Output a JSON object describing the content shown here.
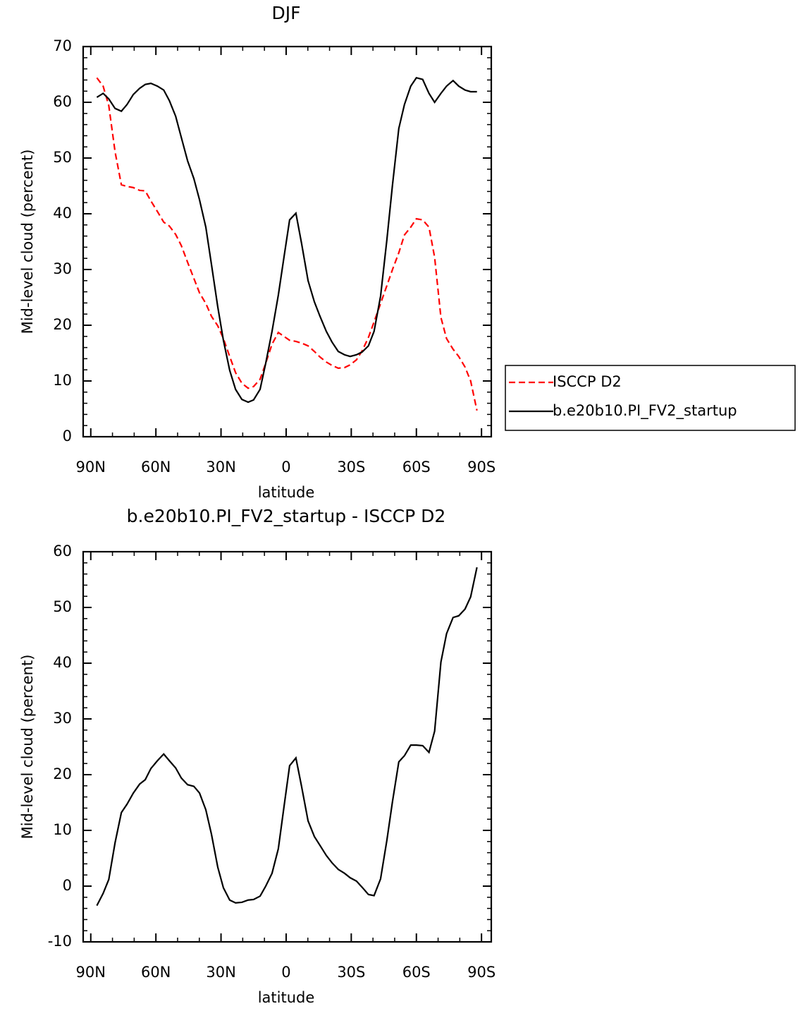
{
  "chart_data": [
    {
      "type": "line",
      "title": "DJF",
      "xlabel": "latitude",
      "ylabel": "Mid-level cloud (percent)",
      "x": [
        87.2,
        84.3,
        81.7,
        78.8,
        75.9,
        73.3,
        70.4,
        67.5,
        64.9,
        62.3,
        59.3,
        56.4,
        53.8,
        50.9,
        48.3,
        45.4,
        42.5,
        39.9,
        37.0,
        34.4,
        31.5,
        28.9,
        26.0,
        23.3,
        20.4,
        17.5,
        15.0,
        12.0,
        9.4,
        6.5,
        3.6,
        1.0,
        -1.6,
        -4.5,
        -7.1,
        -10.1,
        -13.0,
        -15.6,
        -18.5,
        -21.1,
        -24.0,
        -26.9,
        -29.5,
        -32.4,
        -35.0,
        -37.9,
        -40.5,
        -43.5,
        -46.4,
        -49.0,
        -51.9,
        -54.5,
        -57.4,
        -60.0,
        -62.9,
        -65.8,
        -68.4,
        -71.3,
        -73.9,
        -76.9,
        -79.5,
        -82.4,
        -85.0,
        -87.9
      ],
      "series": [
        {
          "name": "ISCCP D2",
          "color": "#ff0000",
          "line_style": "dashed",
          "values": [
            64.4,
            62.9,
            59.4,
            51.1,
            45.2,
            44.9,
            44.7,
            44.2,
            44.1,
            42.3,
            40.4,
            38.5,
            37.8,
            36.3,
            34.3,
            31.3,
            28.4,
            25.8,
            23.9,
            21.6,
            19.9,
            17.6,
            14.4,
            11.5,
            9.6,
            8.7,
            9.0,
            10.3,
            13.2,
            16.6,
            18.7,
            18.0,
            17.3,
            17.1,
            16.8,
            16.3,
            15.3,
            14.3,
            13.4,
            12.8,
            12.3,
            12.4,
            12.9,
            13.8,
            15.4,
            17.8,
            20.6,
            23.9,
            27.1,
            30.0,
            33.0,
            36.2,
            37.6,
            39.1,
            38.9,
            37.6,
            32.2,
            21.4,
            17.6,
            15.7,
            14.4,
            12.5,
            10.0,
            4.7
          ]
        },
        {
          "name": "b.e20b10.PI_FV2_startup",
          "color": "#000000",
          "line_style": "solid",
          "values": [
            60.9,
            61.6,
            60.6,
            58.9,
            58.4,
            59.6,
            61.4,
            62.5,
            63.2,
            63.4,
            62.9,
            62.2,
            60.3,
            57.5,
            53.7,
            49.5,
            46.3,
            42.5,
            37.6,
            30.9,
            23.3,
            17.3,
            11.9,
            8.5,
            6.7,
            6.2,
            6.6,
            8.5,
            13.2,
            18.9,
            25.4,
            32.2,
            38.9,
            40.1,
            34.7,
            28.0,
            24.2,
            21.6,
            18.9,
            17.0,
            15.3,
            14.7,
            14.4,
            14.7,
            15.2,
            16.3,
            18.9,
            25.2,
            35.3,
            45.2,
            55.3,
            59.6,
            62.9,
            64.4,
            64.1,
            61.6,
            60.0,
            61.6,
            62.9,
            63.9,
            62.9,
            62.2,
            61.9,
            61.9
          ]
        }
      ],
      "xlim": [
        93.5,
        -94.5
      ],
      "xticks": [
        {
          "value": 90,
          "label": "90N"
        },
        {
          "value": 60,
          "label": "60N"
        },
        {
          "value": 30,
          "label": "30N"
        },
        0,
        {
          "value": -30,
          "label": "30S"
        },
        {
          "value": -60,
          "label": "60S"
        },
        {
          "value": -90,
          "label": "90S"
        }
      ],
      "minor_xticks": [
        80,
        70,
        50,
        40,
        20,
        10,
        -10,
        -20,
        -40,
        -50,
        -70,
        -80
      ],
      "ylim": [
        0,
        70
      ],
      "yticks": [
        0,
        10,
        20,
        30,
        40,
        50,
        60,
        70
      ],
      "minor_yticks": [
        2,
        4,
        6,
        8,
        12,
        14,
        16,
        18,
        22,
        24,
        26,
        28,
        32,
        34,
        36,
        38,
        42,
        44,
        46,
        48,
        52,
        54,
        56,
        58,
        62,
        64,
        66,
        68
      ],
      "legend": "right"
    },
    {
      "type": "line",
      "title": "b.e20b10.PI_FV2_startup - ISCCP D2",
      "xlabel": "latitude",
      "ylabel": "Mid-level cloud (percent)",
      "x": [
        87.2,
        84.3,
        81.7,
        78.8,
        75.9,
        73.3,
        70.4,
        67.5,
        64.9,
        62.3,
        59.3,
        56.4,
        53.8,
        50.9,
        48.3,
        45.4,
        42.5,
        39.9,
        37.0,
        34.4,
        31.5,
        28.9,
        26.0,
        23.3,
        20.4,
        17.5,
        15.0,
        12.0,
        9.4,
        6.5,
        3.6,
        1.0,
        -1.6,
        -4.5,
        -7.1,
        -10.1,
        -13.0,
        -15.6,
        -18.5,
        -21.1,
        -24.0,
        -26.9,
        -29.5,
        -32.4,
        -35.0,
        -37.9,
        -40.5,
        -43.5,
        -46.4,
        -49.0,
        -51.9,
        -54.5,
        -57.4,
        -60.0,
        -62.9,
        -65.8,
        -68.4,
        -71.3,
        -73.9,
        -76.9,
        -79.5,
        -82.4,
        -85.0,
        -87.9
      ],
      "values": [
        -3.5,
        -1.3,
        1.2,
        7.8,
        13.2,
        14.7,
        16.7,
        18.3,
        19.1,
        21.1,
        22.5,
        23.7,
        22.5,
        21.2,
        19.4,
        18.2,
        17.9,
        16.7,
        13.7,
        9.3,
        3.4,
        -0.3,
        -2.5,
        -3.0,
        -2.9,
        -2.5,
        -2.4,
        -1.8,
        0,
        2.3,
        6.7,
        14.2,
        21.6,
        23.0,
        17.9,
        11.7,
        8.9,
        7.3,
        5.5,
        4.2,
        3.0,
        2.3,
        1.5,
        0.9,
        -0.2,
        -1.5,
        -1.7,
        1.3,
        8.2,
        15.2,
        22.3,
        23.4,
        25.3,
        25.3,
        25.2,
        24.0,
        27.8,
        40.2,
        45.3,
        48.2,
        48.5,
        49.7,
        51.9,
        57.2
      ],
      "color": "#000000",
      "xlim": [
        93.5,
        -94.5
      ],
      "xticks": [
        {
          "value": 90,
          "label": "90N"
        },
        {
          "value": 60,
          "label": "60N"
        },
        {
          "value": 30,
          "label": "30N"
        },
        0,
        {
          "value": -30,
          "label": "30S"
        },
        {
          "value": -60,
          "label": "60S"
        },
        {
          "value": -90,
          "label": "90S"
        }
      ],
      "minor_xticks": [
        80,
        70,
        50,
        40,
        20,
        10,
        -10,
        -20,
        -40,
        -50,
        -70,
        -80
      ],
      "ylim": [
        -10,
        60
      ],
      "yticks": [
        -10,
        0,
        10,
        20,
        30,
        40,
        50,
        60
      ],
      "minor_yticks": [
        -8,
        -6,
        -4,
        -2,
        2,
        4,
        6,
        8,
        12,
        14,
        16,
        18,
        22,
        24,
        26,
        28,
        32,
        34,
        36,
        38,
        42,
        44,
        46,
        48,
        52,
        54,
        56,
        58
      ]
    }
  ]
}
